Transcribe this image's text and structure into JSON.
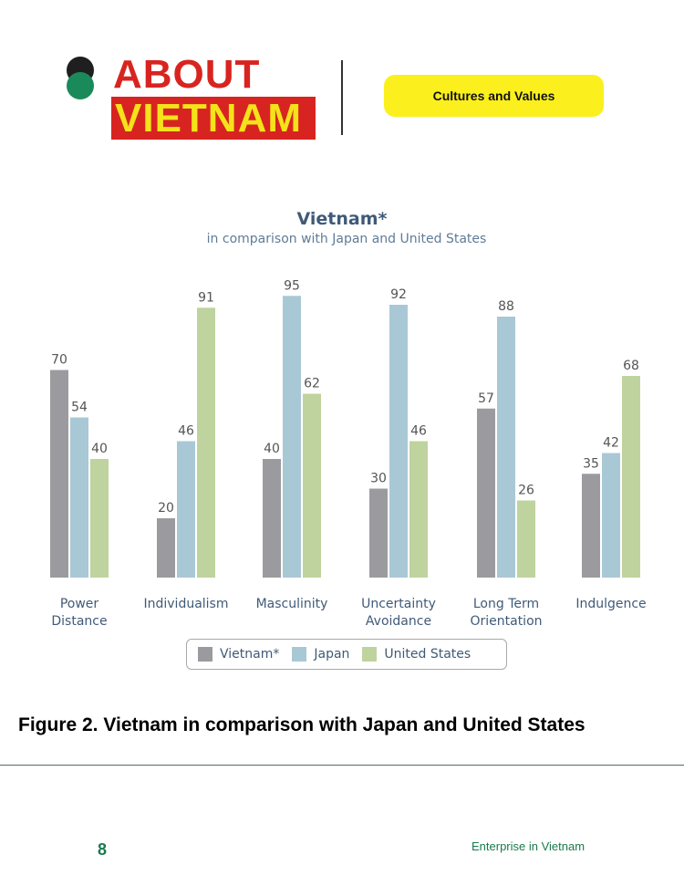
{
  "header": {
    "logo_word1": "ABOUT",
    "logo_word2": "VIETNAM",
    "section_pill": "Cultures and Values"
  },
  "colors": {
    "brand_red": "#d82420",
    "brand_yellow": "#f4e21a",
    "pill_yellow": "#fbef1e",
    "footer_green": "#1a7a4c"
  },
  "chart_data": {
    "type": "bar",
    "title": "Vietnam*",
    "subtitle": "in comparison with Japan and United States",
    "categories": [
      [
        "Power",
        "Distance"
      ],
      [
        "Individualism"
      ],
      [
        "Masculinity"
      ],
      [
        "Uncertainty",
        "Avoidance"
      ],
      [
        "Long Term",
        "Orientation"
      ],
      [
        "Indulgence"
      ]
    ],
    "series": [
      {
        "name": "Vietnam*",
        "color": "#9b9b9f",
        "values": [
          70,
          20,
          40,
          30,
          57,
          35
        ]
      },
      {
        "name": "Japan",
        "color": "#a9c8d6",
        "values": [
          54,
          46,
          95,
          92,
          88,
          42
        ]
      },
      {
        "name": "United States",
        "color": "#bfd39e",
        "values": [
          40,
          91,
          62,
          46,
          26,
          68
        ]
      }
    ],
    "ylim": [
      0,
      100
    ],
    "grid": false,
    "legend_position": "bottom"
  },
  "caption": "Figure 2. Vietnam in comparison with Japan and United States",
  "footer": {
    "page_number": "8",
    "publication": "Enterprise in Vietnam"
  }
}
